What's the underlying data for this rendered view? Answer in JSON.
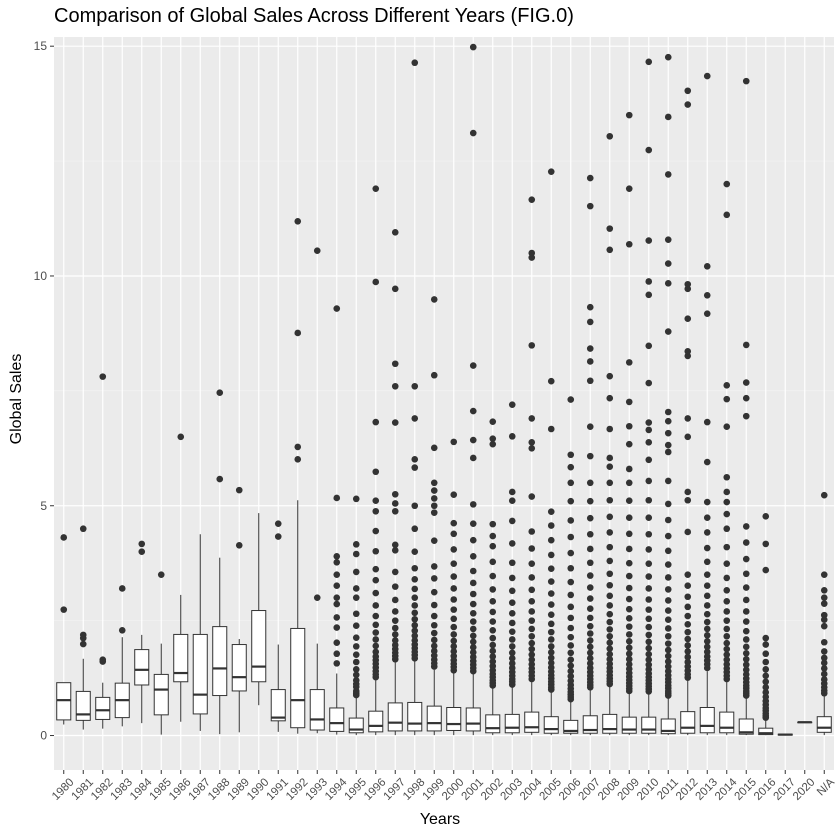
{
  "chart_data": {
    "type": "boxplot",
    "title": "Comparison of Global Sales Across Different Years (FIG.0)",
    "xlabel": "Years",
    "ylabel": "Global Sales",
    "ylim": [
      -0.75,
      15.2
    ],
    "yticks": [
      0,
      5,
      10,
      15
    ],
    "grid": true,
    "legend": "none",
    "colors": {
      "panel": "#ebebeb",
      "grid_major": "#ffffff",
      "grid_minor": "#f4f4f4",
      "box_fill": "#ffffff",
      "box_line": "#333333",
      "axis_text": "#4d4d4d"
    },
    "categories": [
      "1980",
      "1981",
      "1982",
      "1983",
      "1984",
      "1985",
      "1986",
      "1987",
      "1988",
      "1989",
      "1990",
      "1991",
      "1992",
      "1993",
      "1994",
      "1995",
      "1996",
      "1997",
      "1998",
      "1999",
      "2000",
      "2001",
      "2002",
      "2003",
      "2004",
      "2005",
      "2006",
      "2007",
      "2008",
      "2009",
      "2010",
      "2011",
      "2012",
      "2013",
      "2014",
      "2015",
      "2016",
      "2017",
      "2020",
      "N/A"
    ],
    "boxes": [
      {
        "x": "1980",
        "whislo": 0.24,
        "q1": 0.34,
        "med": 0.77,
        "q3": 1.15,
        "whishi": 1.15,
        "outliers": [
          2.74,
          4.31
        ]
      },
      {
        "x": "1981",
        "whislo": 0.13,
        "q1": 0.33,
        "med": 0.46,
        "q3": 0.96,
        "whishi": 1.67,
        "outliers": [
          1.99,
          2.12,
          2.19,
          4.5
        ]
      },
      {
        "x": "1982",
        "whislo": 0.15,
        "q1": 0.35,
        "med": 0.55,
        "q3": 0.83,
        "whishi": 1.15,
        "outliers": [
          1.61,
          1.65,
          7.81
        ]
      },
      {
        "x": "1983",
        "whislo": 0.2,
        "q1": 0.39,
        "med": 0.77,
        "q3": 1.14,
        "whishi": 2.14,
        "outliers": [
          2.29,
          3.2
        ]
      },
      {
        "x": "1984",
        "whislo": 0.27,
        "q1": 1.1,
        "med": 1.43,
        "q3": 1.87,
        "whishi": 2.19,
        "outliers": [
          4.0,
          4.17
        ]
      },
      {
        "x": "1985",
        "whislo": 0.02,
        "q1": 0.45,
        "med": 1.0,
        "q3": 1.33,
        "whishi": 2.0,
        "outliers": [
          3.5
        ]
      },
      {
        "x": "1986",
        "whislo": 0.3,
        "q1": 1.17,
        "med": 1.36,
        "q3": 2.2,
        "whishi": 3.06,
        "outliers": [
          6.5
        ]
      },
      {
        "x": "1987",
        "whislo": 0.1,
        "q1": 0.47,
        "med": 0.89,
        "q3": 2.2,
        "whishi": 4.38,
        "outliers": []
      },
      {
        "x": "1988",
        "whislo": 0.03,
        "q1": 0.87,
        "med": 1.46,
        "q3": 2.37,
        "whishi": 3.87,
        "outliers": [
          5.58,
          7.46
        ]
      },
      {
        "x": "1989",
        "whislo": 0.07,
        "q1": 0.97,
        "med": 1.27,
        "q3": 1.98,
        "whishi": 2.1,
        "outliers": [
          4.14,
          5.34
        ]
      },
      {
        "x": "1990",
        "whislo": 0.66,
        "q1": 1.17,
        "med": 1.5,
        "q3": 2.72,
        "whishi": 4.84,
        "outliers": []
      },
      {
        "x": "1991",
        "whislo": 0.08,
        "q1": 0.32,
        "med": 0.39,
        "q3": 1.0,
        "whishi": 1.98,
        "outliers": [
          4.33,
          4.61
        ]
      },
      {
        "x": "1992",
        "whislo": 0.04,
        "q1": 0.17,
        "med": 0.77,
        "q3": 2.33,
        "whishi": 5.12,
        "outliers": [
          6.01,
          6.28,
          8.76,
          11.19
        ]
      },
      {
        "x": "1993",
        "whislo": 0.05,
        "q1": 0.12,
        "med": 0.35,
        "q3": 1.0,
        "whishi": 2.0,
        "outliers": [
          3.0,
          10.55
        ]
      },
      {
        "x": "1994",
        "whislo": 0.02,
        "q1": 0.09,
        "med": 0.27,
        "q3": 0.6,
        "whishi": 1.35,
        "outliers": [
          1.57,
          1.78,
          2.02,
          2.35,
          2.57,
          2.86,
          3.0,
          3.26,
          3.5,
          3.77,
          3.9,
          5.17,
          9.29
        ]
      },
      {
        "x": "1995",
        "whislo": 0.01,
        "q1": 0.06,
        "med": 0.13,
        "q3": 0.38,
        "whishi": 0.85,
        "outliers": [
          0.88,
          0.92,
          0.97,
          1.06,
          1.12,
          1.2,
          1.32,
          1.44,
          1.6,
          1.76,
          1.94,
          2.13,
          2.39,
          2.65,
          3.0,
          3.2,
          3.56,
          3.95,
          4.16,
          5.15
        ]
      },
      {
        "x": "1996",
        "whislo": 0.01,
        "q1": 0.08,
        "med": 0.21,
        "q3": 0.53,
        "whishi": 1.2,
        "outliers": [
          1.27,
          1.33,
          1.4,
          1.48,
          1.56,
          1.64,
          1.72,
          1.82,
          1.95,
          2.09,
          2.24,
          2.41,
          2.6,
          2.83,
          3.1,
          3.38,
          3.62,
          4.01,
          4.45,
          4.88,
          5.11,
          5.74,
          6.82,
          9.87,
          11.9
        ]
      },
      {
        "x": "1997",
        "whislo": 0.01,
        "q1": 0.1,
        "med": 0.28,
        "q3": 0.71,
        "whishi": 1.6,
        "outliers": [
          1.66,
          1.73,
          1.8,
          1.88,
          1.97,
          2.07,
          2.2,
          2.34,
          2.5,
          2.7,
          2.95,
          3.24,
          3.56,
          4.03,
          4.15,
          4.88,
          5.05,
          5.25,
          6.81,
          7.6,
          8.09,
          9.72,
          10.95
        ]
      },
      {
        "x": "1998",
        "whislo": 0.01,
        "q1": 0.1,
        "med": 0.26,
        "q3": 0.72,
        "whishi": 1.62,
        "outliers": [
          1.68,
          1.75,
          1.82,
          1.9,
          1.98,
          2.07,
          2.17,
          2.28,
          2.4,
          2.53,
          2.67,
          2.83,
          3.0,
          3.19,
          3.4,
          3.64,
          4.0,
          4.5,
          5.0,
          5.83,
          6.01,
          6.9,
          7.6,
          14.64
        ]
      },
      {
        "x": "1999",
        "whislo": 0.01,
        "q1": 0.1,
        "med": 0.27,
        "q3": 0.64,
        "whishi": 1.43,
        "outliers": [
          1.5,
          1.57,
          1.65,
          1.74,
          1.84,
          1.95,
          2.08,
          2.23,
          2.4,
          2.6,
          2.84,
          3.12,
          3.42,
          3.68,
          4.24,
          4.85,
          5.0,
          5.16,
          5.33,
          5.5,
          6.26,
          7.84,
          9.49
        ]
      },
      {
        "x": "2000",
        "whislo": 0.01,
        "q1": 0.11,
        "med": 0.25,
        "q3": 0.61,
        "whishi": 1.36,
        "outliers": [
          1.42,
          1.49,
          1.56,
          1.64,
          1.73,
          1.83,
          1.94,
          2.06,
          2.2,
          2.36,
          2.54,
          2.74,
          2.96,
          3.2,
          3.46,
          3.74,
          4.05,
          4.39,
          4.62,
          5.24,
          6.39
        ]
      },
      {
        "x": "2001",
        "whislo": 0.01,
        "q1": 0.1,
        "med": 0.26,
        "q3": 0.6,
        "whishi": 1.34,
        "outliers": [
          1.4,
          1.47,
          1.54,
          1.62,
          1.71,
          1.81,
          1.92,
          2.04,
          2.17,
          2.32,
          2.48,
          2.66,
          2.86,
          3.08,
          3.32,
          3.58,
          3.9,
          4.25,
          4.61,
          5.03,
          6.04,
          6.43,
          7.06,
          8.05,
          13.11,
          14.98
        ]
      },
      {
        "x": "2002",
        "whislo": 0.01,
        "q1": 0.06,
        "med": 0.16,
        "q3": 0.45,
        "whishi": 1.04,
        "outliers": [
          1.09,
          1.14,
          1.2,
          1.27,
          1.34,
          1.42,
          1.51,
          1.61,
          1.72,
          1.84,
          1.97,
          2.12,
          2.29,
          2.48,
          2.69,
          2.92,
          3.18,
          3.47,
          3.78,
          4.12,
          4.34,
          4.6,
          6.34,
          6.46,
          6.83
        ]
      },
      {
        "x": "2003",
        "whislo": 0.01,
        "q1": 0.06,
        "med": 0.17,
        "q3": 0.46,
        "whishi": 1.06,
        "outliers": [
          1.11,
          1.17,
          1.23,
          1.3,
          1.38,
          1.47,
          1.57,
          1.68,
          1.8,
          1.94,
          2.09,
          2.26,
          2.45,
          2.66,
          2.89,
          3.15,
          3.43,
          3.76,
          4.18,
          4.67,
          5.11,
          5.3,
          6.51,
          7.2
        ]
      },
      {
        "x": "2004",
        "whislo": 0.01,
        "q1": 0.07,
        "med": 0.18,
        "q3": 0.51,
        "whishi": 1.17,
        "outliers": [
          1.23,
          1.3,
          1.38,
          1.46,
          1.55,
          1.65,
          1.76,
          1.88,
          2.01,
          2.16,
          2.32,
          2.5,
          2.7,
          2.92,
          3.17,
          3.44,
          3.74,
          4.07,
          4.44,
          5.2,
          6.25,
          6.38,
          6.9,
          8.49,
          10.4,
          10.5,
          11.66
        ]
      },
      {
        "x": "2005",
        "whislo": 0.01,
        "q1": 0.05,
        "med": 0.14,
        "q3": 0.41,
        "whishi": 0.95,
        "outliers": [
          1.0,
          1.05,
          1.11,
          1.17,
          1.24,
          1.31,
          1.39,
          1.48,
          1.58,
          1.69,
          1.81,
          1.94,
          2.09,
          2.25,
          2.43,
          2.63,
          2.85,
          3.09,
          3.35,
          3.63,
          3.93,
          4.25,
          4.57,
          4.87,
          6.67,
          7.71,
          12.27
        ]
      },
      {
        "x": "2006",
        "whislo": 0.01,
        "q1": 0.05,
        "med": 0.1,
        "q3": 0.33,
        "whishi": 0.75,
        "outliers": [
          0.79,
          0.84,
          0.89,
          0.95,
          1.02,
          1.1,
          1.19,
          1.29,
          1.4,
          1.52,
          1.65,
          1.8,
          1.96,
          2.14,
          2.34,
          2.56,
          2.8,
          3.06,
          3.34,
          3.64,
          3.97,
          4.32,
          4.68,
          5.1,
          5.5,
          5.84,
          6.11,
          7.31
        ]
      },
      {
        "x": "2007",
        "whislo": 0.01,
        "q1": 0.05,
        "med": 0.12,
        "q3": 0.43,
        "whishi": 1.0,
        "outliers": [
          1.05,
          1.1,
          1.16,
          1.23,
          1.3,
          1.38,
          1.47,
          1.57,
          1.68,
          1.8,
          1.93,
          2.07,
          2.22,
          2.38,
          2.56,
          2.76,
          2.98,
          3.22,
          3.48,
          3.76,
          4.06,
          4.38,
          4.73,
          5.1,
          5.5,
          6.08,
          6.72,
          7.72,
          8.14,
          8.42,
          9.0,
          9.32,
          11.52,
          12.13
        ]
      },
      {
        "x": "2008",
        "whislo": 0.01,
        "q1": 0.05,
        "med": 0.14,
        "q3": 0.46,
        "whishi": 1.07,
        "outliers": [
          1.12,
          1.18,
          1.24,
          1.31,
          1.39,
          1.47,
          1.56,
          1.66,
          1.77,
          1.89,
          2.02,
          2.16,
          2.31,
          2.47,
          2.64,
          2.83,
          3.04,
          3.27,
          3.52,
          3.8,
          4.1,
          4.42,
          4.76,
          5.12,
          5.5,
          5.85,
          6.04,
          6.67,
          7.34,
          7.82,
          10.57,
          11.03,
          13.04
        ]
      },
      {
        "x": "2009",
        "whislo": 0.01,
        "q1": 0.05,
        "med": 0.13,
        "q3": 0.4,
        "whishi": 0.93,
        "outliers": [
          0.97,
          1.02,
          1.08,
          1.14,
          1.21,
          1.28,
          1.36,
          1.45,
          1.55,
          1.66,
          1.78,
          1.91,
          2.05,
          2.2,
          2.37,
          2.55,
          2.75,
          2.97,
          3.21,
          3.47,
          3.75,
          4.06,
          4.39,
          4.74,
          5.11,
          5.5,
          5.8,
          6.34,
          6.73,
          7.26,
          8.12,
          10.69,
          11.9,
          13.5
        ]
      },
      {
        "x": "2010",
        "whislo": 0.01,
        "q1": 0.05,
        "med": 0.13,
        "q3": 0.4,
        "whishi": 0.92,
        "outliers": [
          0.96,
          1.01,
          1.07,
          1.13,
          1.2,
          1.27,
          1.35,
          1.44,
          1.54,
          1.65,
          1.77,
          1.9,
          2.04,
          2.19,
          2.36,
          2.54,
          2.74,
          2.96,
          3.2,
          3.46,
          3.74,
          4.05,
          4.38,
          4.74,
          5.12,
          5.54,
          6.0,
          6.38,
          6.65,
          6.81,
          7.67,
          8.48,
          9.59,
          9.88,
          10.77,
          12.74,
          14.66
        ]
      },
      {
        "x": "2011",
        "whislo": 0.01,
        "q1": 0.04,
        "med": 0.1,
        "q3": 0.36,
        "whishi": 0.83,
        "outliers": [
          0.87,
          0.92,
          0.97,
          1.03,
          1.09,
          1.16,
          1.23,
          1.31,
          1.4,
          1.5,
          1.61,
          1.73,
          1.86,
          2.0,
          2.16,
          2.33,
          2.52,
          2.72,
          2.94,
          3.18,
          3.44,
          3.72,
          4.02,
          4.34,
          4.69,
          5.04,
          5.54,
          6.17,
          6.32,
          6.58,
          6.84,
          7.04,
          8.79,
          9.84,
          10.27,
          10.79,
          12.21,
          13.46,
          14.76
        ]
      },
      {
        "x": "2012",
        "whislo": 0.01,
        "q1": 0.05,
        "med": 0.17,
        "q3": 0.52,
        "whishi": 1.2,
        "outliers": [
          1.26,
          1.33,
          1.41,
          1.5,
          1.6,
          1.71,
          1.83,
          1.96,
          2.1,
          2.25,
          2.42,
          2.6,
          2.8,
          3.02,
          3.26,
          3.5,
          4.43,
          5.12,
          5.3,
          6.5,
          6.9,
          8.26,
          8.36,
          9.07,
          9.72,
          9.82,
          13.73,
          14.03
        ]
      },
      {
        "x": "2013",
        "whislo": 0.01,
        "q1": 0.06,
        "med": 0.21,
        "q3": 0.61,
        "whishi": 1.4,
        "outliers": [
          1.47,
          1.55,
          1.63,
          1.72,
          1.82,
          1.93,
          2.05,
          2.18,
          2.32,
          2.47,
          2.64,
          2.83,
          3.04,
          3.26,
          3.5,
          3.78,
          4.08,
          4.42,
          4.74,
          5.08,
          5.95,
          6.82,
          9.18,
          9.58,
          10.21,
          14.35
        ]
      },
      {
        "x": "2014",
        "whislo": 0.01,
        "q1": 0.06,
        "med": 0.17,
        "q3": 0.51,
        "whishi": 1.17,
        "outliers": [
          1.23,
          1.3,
          1.38,
          1.46,
          1.55,
          1.65,
          1.76,
          1.88,
          2.01,
          2.16,
          2.32,
          2.5,
          2.7,
          2.92,
          3.16,
          3.43,
          3.74,
          4.1,
          4.5,
          4.82,
          5.08,
          5.3,
          5.62,
          6.72,
          7.32,
          7.62,
          11.33,
          12.0
        ]
      },
      {
        "x": "2015",
        "whislo": 0.01,
        "q1": 0.03,
        "med": 0.07,
        "q3": 0.36,
        "whishi": 0.83,
        "outliers": [
          0.87,
          0.92,
          0.97,
          1.03,
          1.09,
          1.16,
          1.24,
          1.33,
          1.43,
          1.54,
          1.66,
          1.79,
          1.93,
          2.09,
          2.27,
          2.48,
          2.7,
          2.95,
          3.22,
          3.52,
          3.84,
          4.2,
          4.55,
          6.95,
          7.34,
          7.68,
          8.5,
          14.24
        ]
      },
      {
        "x": "2016",
        "whislo": 0.01,
        "q1": 0.02,
        "med": 0.05,
        "q3": 0.16,
        "whishi": 0.36,
        "outliers": [
          0.39,
          0.43,
          0.48,
          0.54,
          0.6,
          0.67,
          0.75,
          0.84,
          0.94,
          1.05,
          1.17,
          1.3,
          1.44,
          1.6,
          1.78,
          1.98,
          2.12,
          3.6,
          4.17,
          4.77
        ]
      },
      {
        "x": "2017",
        "whislo": 0.01,
        "q1": 0.01,
        "med": 0.02,
        "q3": 0.03,
        "whishi": 0.03,
        "outliers": []
      },
      {
        "x": "2020",
        "whislo": 0.29,
        "q1": 0.29,
        "med": 0.29,
        "q3": 0.29,
        "whishi": 0.29,
        "outliers": []
      },
      {
        "x": "N/A",
        "whislo": 0.01,
        "q1": 0.07,
        "med": 0.17,
        "q3": 0.41,
        "whishi": 0.87,
        "outliers": [
          0.92,
          0.98,
          1.05,
          1.13,
          1.22,
          1.34,
          1.46,
          1.58,
          1.69,
          1.83,
          2.03,
          2.38,
          2.52,
          2.62,
          2.87,
          3.0,
          3.16,
          3.5,
          5.23
        ]
      }
    ]
  }
}
